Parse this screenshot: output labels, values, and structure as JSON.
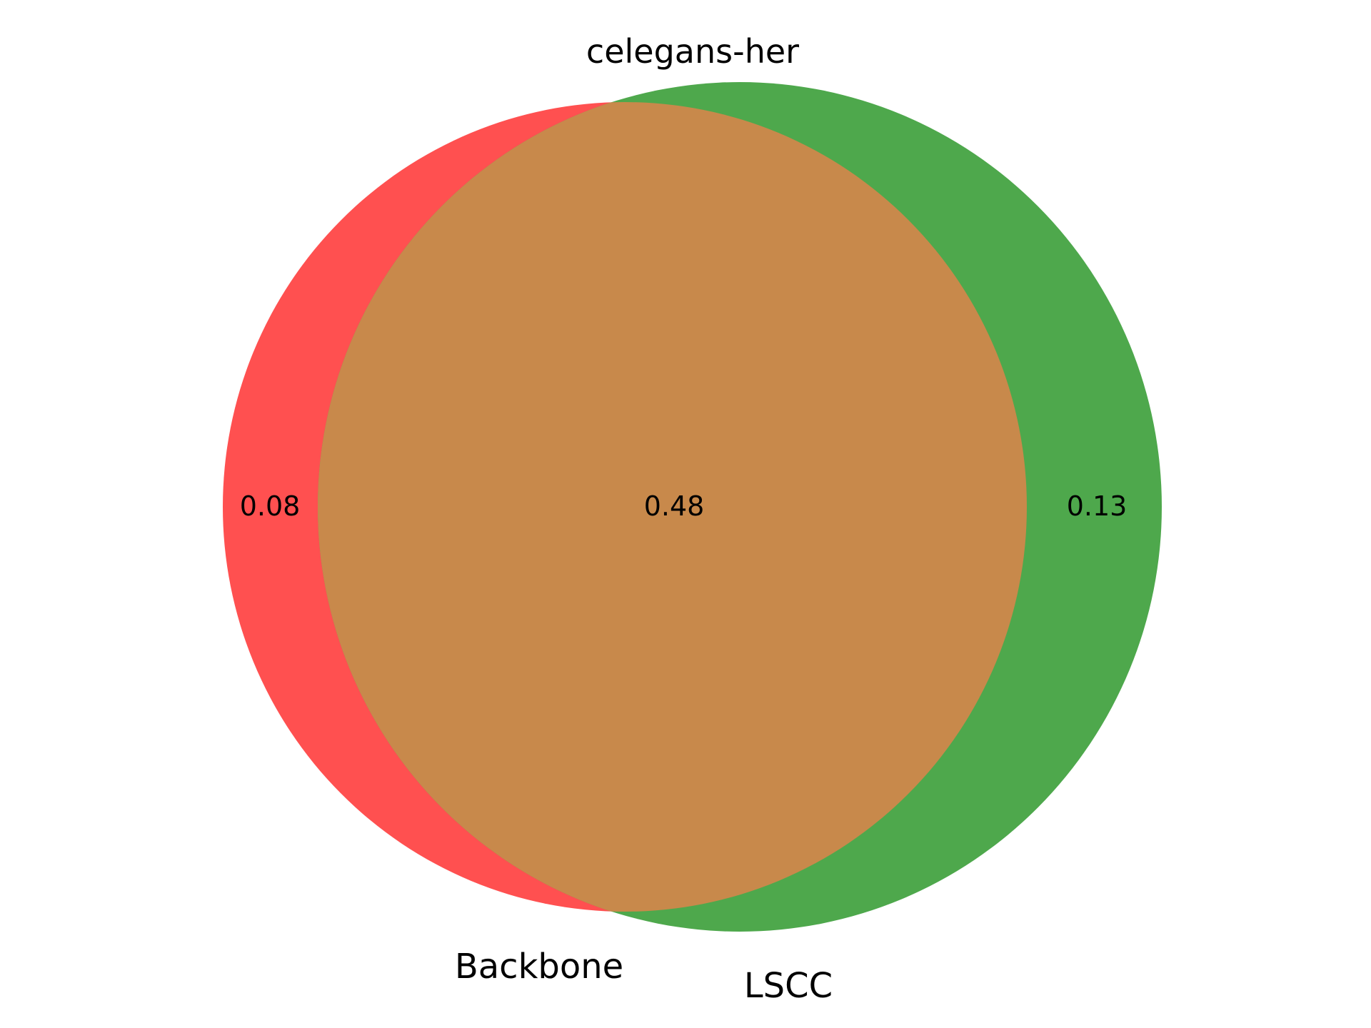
{
  "title": "celegans-her",
  "sets": [
    {
      "name": "Backbone",
      "color": "#ff5050"
    },
    {
      "name": "LSCC",
      "color": "#4ea84c"
    }
  ],
  "overlap_color": "#c8894b",
  "regions": {
    "only_a": "0.08",
    "both": "0.48",
    "only_b": "0.13"
  }
}
